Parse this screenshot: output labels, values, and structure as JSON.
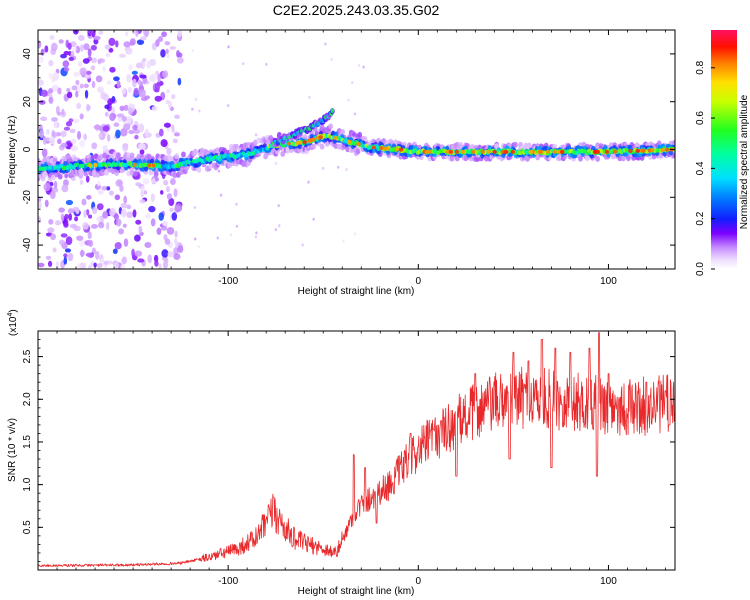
{
  "figure_title": "C2E2.2025.243.03.35.G02",
  "colors": {
    "snr_line": "#e8282a",
    "axis": "#000000"
  },
  "chart_data": [
    {
      "type": "heatmap",
      "xlabel": "Height of straight line (km)",
      "ylabel": "Frequency (Hz)",
      "xlim": [
        -200,
        135
      ],
      "ylim": [
        -50,
        50
      ],
      "x_ticks": [
        -100,
        0,
        100
      ],
      "y_ticks": [
        -40,
        -20,
        0,
        20,
        40
      ],
      "colorbar": {
        "label": "Normalized spectral amplitude",
        "range": [
          0,
          0.95
        ],
        "ticks": [
          0.0,
          0.2,
          0.4,
          0.6,
          0.8
        ]
      },
      "ridge": [
        {
          "x": -200,
          "y": -8
        },
        {
          "x": -160,
          "y": -6
        },
        {
          "x": -130,
          "y": -7
        },
        {
          "x": -110,
          "y": -4
        },
        {
          "x": -90,
          "y": -2
        },
        {
          "x": -75,
          "y": 2
        },
        {
          "x": -60,
          "y": 3
        },
        {
          "x": -48,
          "y": 6
        },
        {
          "x": -40,
          "y": 4
        },
        {
          "x": -25,
          "y": 1
        },
        {
          "x": -10,
          "y": 0
        },
        {
          "x": 0,
          "y": -1
        },
        {
          "x": 50,
          "y": -1
        },
        {
          "x": 100,
          "y": -1
        },
        {
          "x": 135,
          "y": 0
        }
      ],
      "branch": [
        {
          "x": -75,
          "y": 3
        },
        {
          "x": -60,
          "y": 8
        },
        {
          "x": -50,
          "y": 12
        },
        {
          "x": -45,
          "y": 16
        }
      ]
    },
    {
      "type": "line",
      "xlabel": "Height of straight line (km)",
      "ylabel": "SNR (10 * v/v)",
      "y_scale_label": "(x10",
      "y_scale_exp": "4",
      "y_scale_close": ")",
      "xlim": [
        -200,
        135
      ],
      "ylim": [
        0,
        2.8
      ],
      "x_ticks": [
        -100,
        0,
        100
      ],
      "y_ticks": [
        0.5,
        1.0,
        1.5,
        2.0,
        2.5
      ],
      "series": [
        {
          "envelope": [
            [
              -200,
              0.05
            ],
            [
              -150,
              0.06
            ],
            [
              -125,
              0.08
            ],
            [
              -110,
              0.15
            ],
            [
              -95,
              0.25
            ],
            [
              -85,
              0.38
            ],
            [
              -80,
              0.55
            ],
            [
              -76,
              0.68
            ],
            [
              -72,
              0.55
            ],
            [
              -66,
              0.38
            ],
            [
              -58,
              0.3
            ],
            [
              -50,
              0.25
            ],
            [
              -43,
              0.2
            ],
            [
              -36,
              0.55
            ],
            [
              -32,
              0.72
            ],
            [
              -25,
              0.85
            ],
            [
              -15,
              1.0
            ],
            [
              -5,
              1.3
            ],
            [
              5,
              1.5
            ],
            [
              15,
              1.65
            ],
            [
              25,
              1.8
            ],
            [
              35,
              1.92
            ],
            [
              50,
              2.02
            ],
            [
              70,
              2.0
            ],
            [
              90,
              1.95
            ],
            [
              110,
              1.9
            ],
            [
              135,
              1.95
            ]
          ],
          "spikes": [
            [
              -76,
              0.85
            ],
            [
              -34,
              1.35
            ],
            [
              -28,
              1.2
            ],
            [
              -4,
              1.6
            ],
            [
              8,
              1.65
            ],
            [
              12,
              1.75
            ],
            [
              30,
              2.3
            ],
            [
              50,
              2.55
            ],
            [
              58,
              2.45
            ],
            [
              65,
              2.7
            ],
            [
              70,
              2.1
            ],
            [
              72,
              2.6
            ],
            [
              80,
              2.55
            ],
            [
              90,
              2.6
            ],
            [
              95,
              2.78
            ],
            [
              100,
              2.3
            ],
            [
              120,
              2.2
            ],
            [
              130,
              2.1
            ]
          ],
          "dips": [
            [
              -22,
              0.55
            ],
            [
              20,
              1.1
            ],
            [
              48,
              1.3
            ],
            [
              70,
              1.2
            ],
            [
              94,
              1.1
            ],
            [
              132,
              1.7
            ]
          ]
        }
      ]
    }
  ]
}
